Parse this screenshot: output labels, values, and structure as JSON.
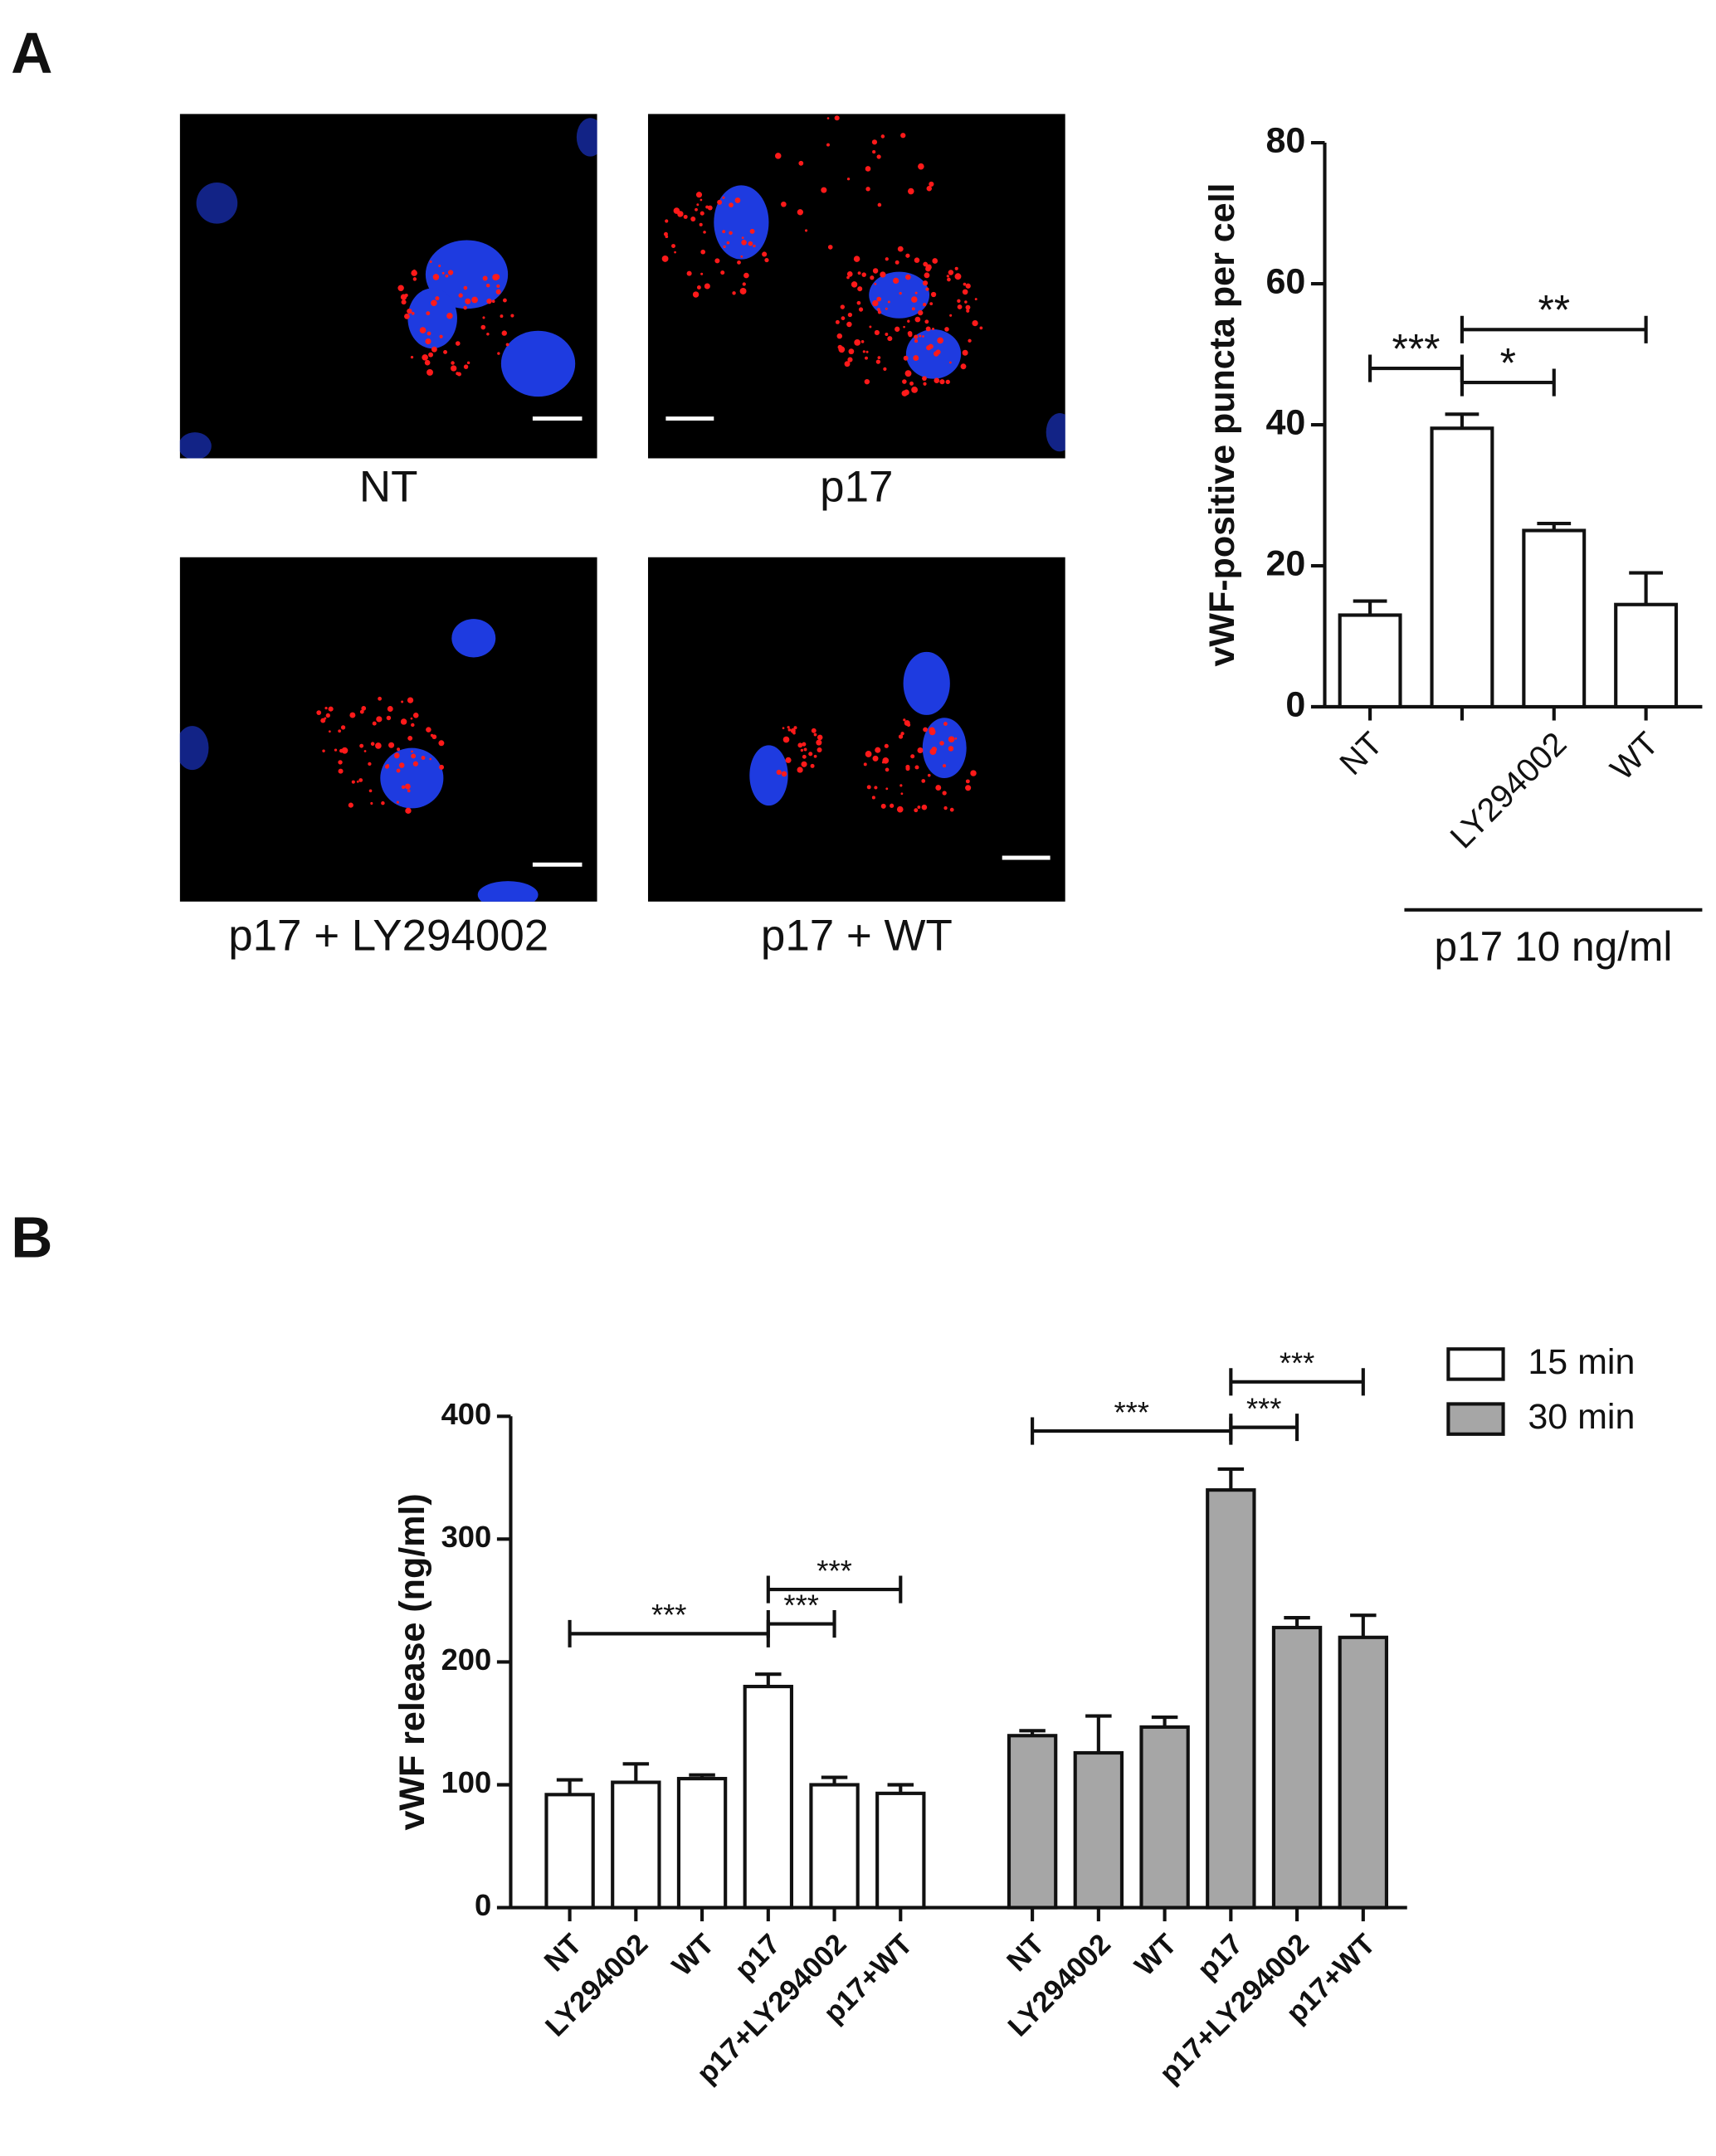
{
  "panel_labels": [
    "A",
    "B"
  ],
  "micrographs": [
    {
      "caption": "NT"
    },
    {
      "caption": "p17"
    },
    {
      "caption": "p17 + LY294002"
    },
    {
      "caption": "p17 + WT"
    }
  ],
  "chart_data": [
    {
      "type": "bar",
      "ylabel": "vWF-positive puncta per cell",
      "categories": [
        "NT",
        null,
        "LY294002",
        "WT"
      ],
      "values": [
        13,
        39.5,
        25,
        14.5
      ],
      "errors": [
        2,
        2,
        1,
        4.5
      ],
      "color": "#ffffff",
      "ylim": [
        0,
        80
      ],
      "yticks": [
        0,
        20,
        40,
        60,
        80
      ],
      "group_label": "p17 10 ng/ml",
      "significance": [
        {
          "from": 0,
          "to": 1,
          "label": "***",
          "y": 48
        },
        {
          "from": 1,
          "to": 2,
          "label": "*",
          "y": 46
        },
        {
          "from": 1,
          "to": 3,
          "label": "**",
          "y": 53.5
        }
      ]
    },
    {
      "type": "bar",
      "ylabel": "vWF release (ng/ml)",
      "categories": [
        "NT",
        "LY294002",
        "WT",
        "p17",
        "p17+LY294002",
        "p17+WT"
      ],
      "series": [
        {
          "name": "15 min",
          "color": "#ffffff",
          "values": [
            92,
            102,
            105,
            180,
            100,
            93
          ],
          "errors": [
            12,
            15,
            3,
            10,
            6,
            7
          ],
          "significance": [
            {
              "from": 0,
              "to": 3,
              "label": "***",
              "y": 223
            },
            {
              "from": 3,
              "to": 4,
              "label": "***",
              "y": 231
            },
            {
              "from": 3,
              "to": 5,
              "label": "***",
              "y": 259
            }
          ]
        },
        {
          "name": "30 min",
          "color": "#a6a6a6",
          "values": [
            140,
            126,
            147,
            340,
            228,
            220
          ],
          "errors": [
            4,
            30,
            8,
            17,
            8,
            18
          ],
          "significance": [
            {
              "from": 0,
              "to": 3,
              "label": "***",
              "y": 388
            },
            {
              "from": 3,
              "to": 4,
              "label": "***",
              "y": 391
            },
            {
              "from": 3,
              "to": 5,
              "label": "***",
              "y": 428
            }
          ]
        }
      ],
      "ylim": [
        0,
        400
      ],
      "yticks": [
        0,
        100,
        200,
        300,
        400
      ],
      "legend": "upper right"
    }
  ]
}
